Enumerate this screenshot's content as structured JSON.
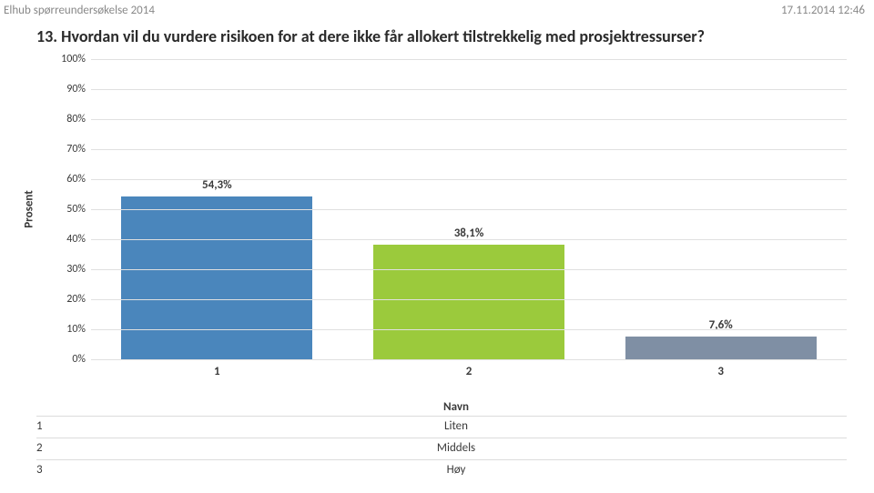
{
  "header": {
    "survey_name": "Elhub spørreundersøkelse 2014",
    "timestamp": "17.11.2014 12:46"
  },
  "question": "13. Hvordan vil du vurdere risikoen for at dere ikke får allokert tilstrekkelig med prosjektressurser?",
  "chart": {
    "type": "bar",
    "ylabel": "Prosent",
    "ylim": [
      0,
      100
    ],
    "ytick_step": 10,
    "yticks": [
      "0%",
      "10%",
      "20%",
      "30%",
      "40%",
      "50%",
      "60%",
      "70%",
      "80%",
      "90%",
      "100%"
    ],
    "grid_color": "#e0e0e0",
    "background_color": "#ffffff",
    "bars": [
      {
        "category": "1",
        "value": 54.3,
        "value_label": "54,3%",
        "color": "#4a86bc"
      },
      {
        "category": "2",
        "value": 38.1,
        "value_label": "38,1%",
        "color": "#9bca3c"
      },
      {
        "category": "3",
        "value": 7.6,
        "value_label": "7,6%",
        "color": "#7f8fa4"
      }
    ],
    "bar_width_pct": 76,
    "label_fontsize": 13
  },
  "legend": {
    "header_name": "Navn",
    "rows": [
      {
        "n": "1",
        "name": "Liten"
      },
      {
        "n": "2",
        "name": "Middels"
      },
      {
        "n": "3",
        "name": "Høy"
      }
    ]
  }
}
